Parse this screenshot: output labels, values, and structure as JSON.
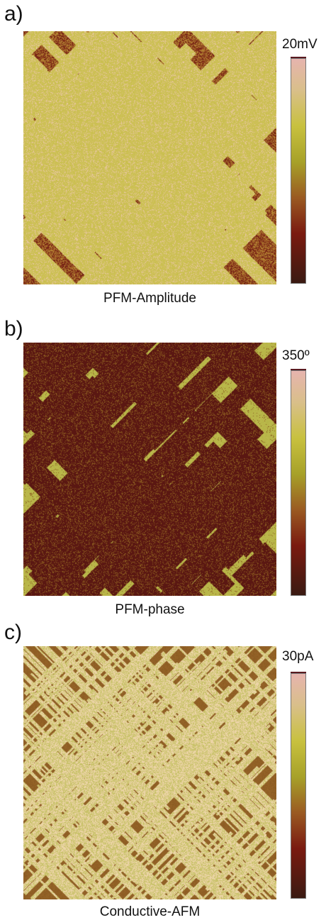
{
  "panels": [
    {
      "label": "a)",
      "scale_max": "20mV",
      "caption": "PFM-Amplitude",
      "colors": {
        "low": "#6e1c14",
        "mid": "#a14a1e",
        "high": "#c8bf48",
        "peak": "#e8c7a0"
      }
    },
    {
      "label": "b)",
      "scale_max": "350º",
      "caption": "PFM-phase",
      "colors": {
        "low": "#5a1712",
        "mid": "#8a5a20",
        "high": "#b4b344",
        "peak": "#c9c25a"
      }
    },
    {
      "label": "c)",
      "scale_max": "30pA",
      "caption": "Conductive-AFM",
      "colors": {
        "low": "#8a5a22",
        "mid": "#9e6b2c",
        "high": "#c9c26a",
        "peak": "#ecd4a6"
      }
    }
  ]
}
